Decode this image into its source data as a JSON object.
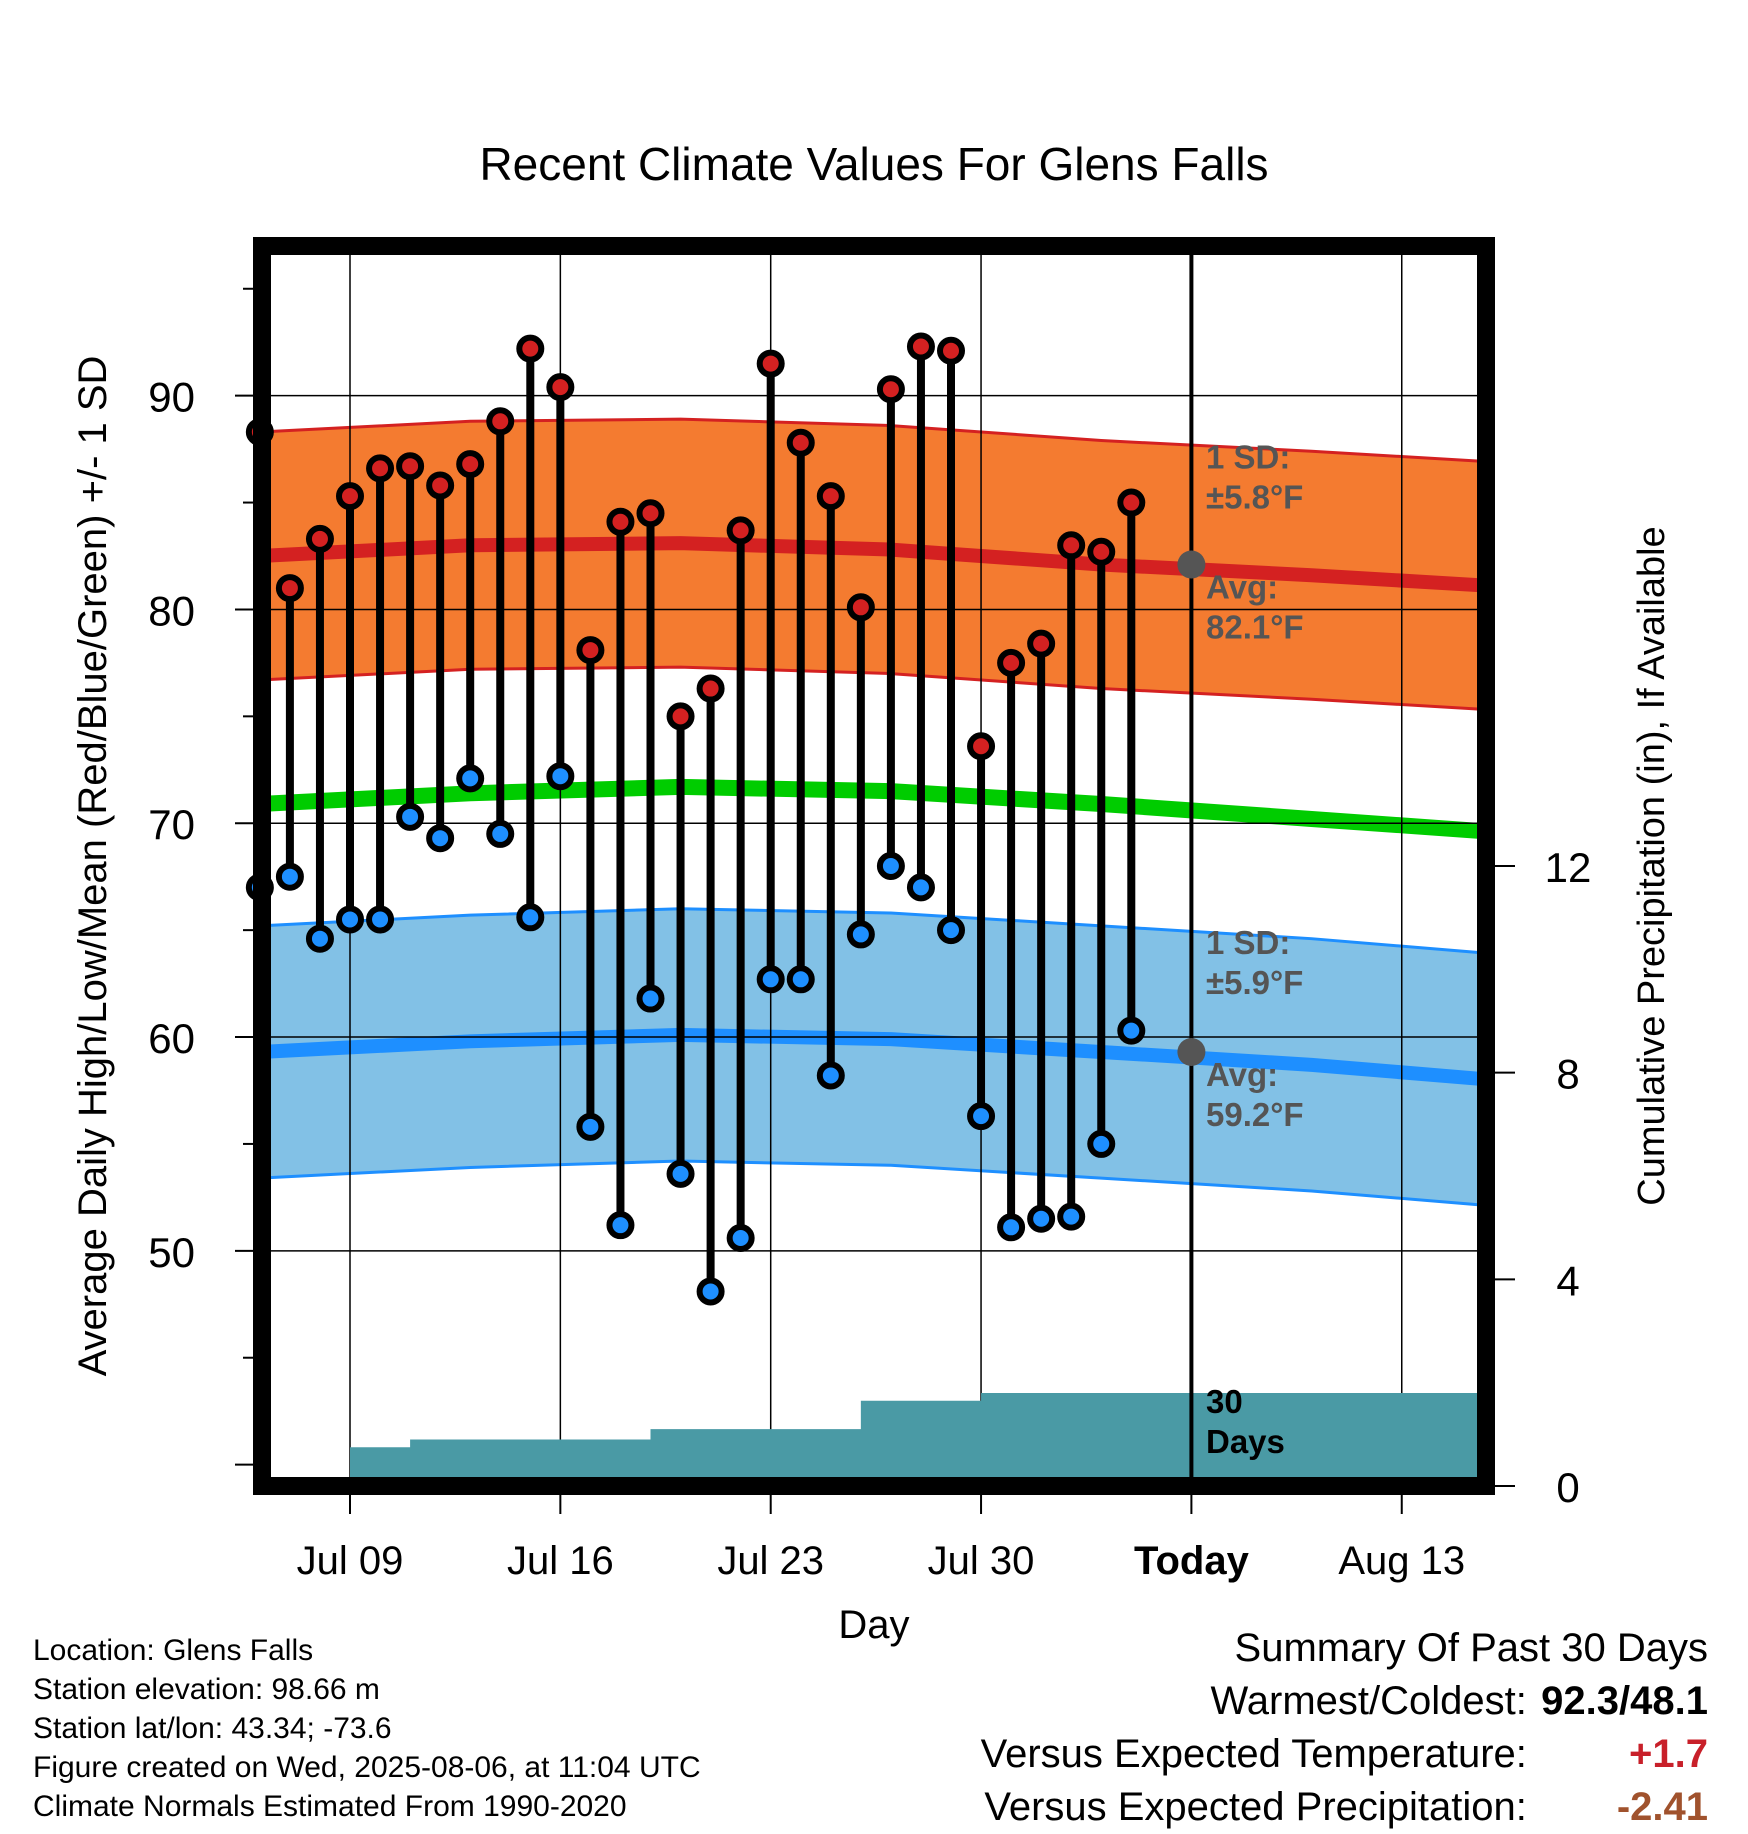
{
  "chart_data": {
    "type": "line",
    "title": "Recent Climate Values For Glens Falls",
    "xlabel": "Day",
    "ylabel": "Average Daily High/Low/Mean (Red/Blue/Green) +/- 1 SD",
    "y2label": "Cumulative Precipitation (in), If Available",
    "ylim": [
      39,
      97
    ],
    "y2lim": [
      0,
      24
    ],
    "yticks": [
      "50",
      "60",
      "70",
      "80",
      "90"
    ],
    "y2ticks": [
      "0",
      "4",
      "8",
      "12"
    ],
    "xticks": [
      "Jul 09",
      "Jul 16",
      "Jul 23",
      "Jul 30",
      "Today",
      "Aug 13"
    ],
    "grid": true,
    "x": [
      "2025-07-06",
      "2025-07-07",
      "2025-07-08",
      "2025-07-09",
      "2025-07-10",
      "2025-07-11",
      "2025-07-12",
      "2025-07-13",
      "2025-07-14",
      "2025-07-15",
      "2025-07-16",
      "2025-07-17",
      "2025-07-18",
      "2025-07-19",
      "2025-07-20",
      "2025-07-21",
      "2025-07-22",
      "2025-07-23",
      "2025-07-24",
      "2025-07-25",
      "2025-07-26",
      "2025-07-27",
      "2025-07-28",
      "2025-07-29",
      "2025-07-30",
      "2025-07-31",
      "2025-08-01",
      "2025-08-02",
      "2025-08-03",
      "2025-08-04",
      "2025-08-05"
    ],
    "series": [
      {
        "name": "Daily High",
        "color": "#d42121",
        "values": [
          88.3,
          81.0,
          83.3,
          85.3,
          86.6,
          86.7,
          85.8,
          86.8,
          88.8,
          92.2,
          90.4,
          78.1,
          84.1,
          84.5,
          75.0,
          76.3,
          83.7,
          91.5,
          87.8,
          85.3,
          80.1,
          90.3,
          92.3,
          92.1,
          73.6,
          77.5,
          78.4,
          83.0,
          82.7,
          85.0,
          null
        ]
      },
      {
        "name": "Daily Low",
        "color": "#1e8fff",
        "values": [
          67.0,
          67.5,
          64.6,
          65.5,
          65.5,
          70.3,
          69.3,
          72.1,
          69.5,
          65.6,
          72.2,
          55.8,
          51.2,
          61.8,
          53.6,
          48.1,
          50.6,
          62.7,
          62.7,
          58.2,
          64.8,
          68.0,
          67.0,
          65.0,
          56.3,
          51.1,
          51.5,
          51.6,
          55.0,
          60.3,
          null
        ]
      },
      {
        "name": "Cumulative Precipitation",
        "color": "#4a9aa5",
        "values": [
          0,
          0,
          0,
          0.75,
          0.75,
          0.9,
          0.9,
          0.9,
          0.9,
          0.9,
          0.9,
          0.9,
          0.9,
          1.1,
          1.1,
          1.1,
          1.1,
          1.1,
          1.1,
          1.1,
          1.65,
          1.65,
          1.65,
          1.65,
          1.8,
          1.8,
          1.8,
          1.8,
          1.8,
          1.8,
          1.8
        ]
      }
    ],
    "normals_x": [
      "2025-07-06",
      "2025-07-13",
      "2025-07-20",
      "2025-07-27",
      "2025-08-03",
      "2025-08-10",
      "2025-08-16"
    ],
    "normal_high": [
      82.5,
      83.0,
      83.1,
      82.8,
      82.1,
      81.6,
      81.1
    ],
    "normal_high_sd": 5.8,
    "normal_mean": [
      70.9,
      71.4,
      71.7,
      71.5,
      70.9,
      70.2,
      69.6
    ],
    "normal_low": [
      59.3,
      59.8,
      60.1,
      59.9,
      59.3,
      58.7,
      58.0
    ],
    "normal_low_sd": 5.9,
    "annotations": {
      "high_sd": [
        "1 SD:",
        "±5.8°F"
      ],
      "high_avg": [
        "Avg:",
        "82.1°F"
      ],
      "low_sd": [
        "1 SD:",
        "±5.9°F"
      ],
      "low_avg": [
        "Avg:",
        "59.2°F"
      ],
      "precip": [
        "30",
        "Days"
      ]
    },
    "colors": {
      "high_band": "#f47b30",
      "high_line": "#d42121",
      "low_band": "#82c1e6",
      "low_line": "#1e8fff",
      "mean_line": "#00cc00",
      "precip_fill": "#4a9aa5",
      "annotation": "#555555"
    }
  },
  "footer": {
    "location": "Location: Glens Falls",
    "elevation": "Station elevation: 98.66 m",
    "latlon": "Station lat/lon: 43.34; -73.6",
    "created": "Figure created on Wed, 2025-08-06, at 11:04 UTC",
    "normals": "Climate Normals Estimated From 1990-2020"
  },
  "summary": {
    "title": "Summary Of Past 30 Days",
    "warmest_coldest_label": "Warmest/Coldest:",
    "warmest_coldest_value": "92.3/48.1",
    "temp_label": "Versus Expected Temperature:",
    "temp_value": "+1.7",
    "precip_label": "Versus Expected Precipitation:",
    "precip_value": "-2.41"
  }
}
